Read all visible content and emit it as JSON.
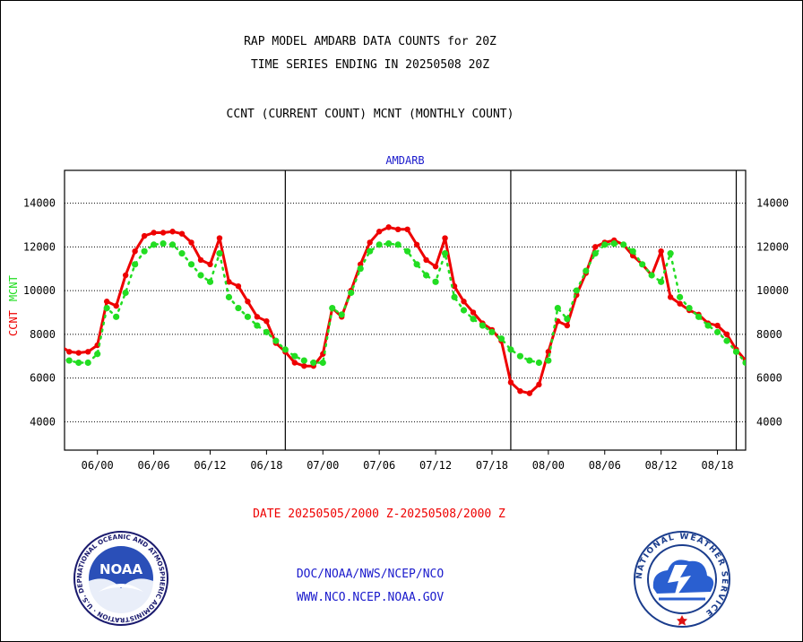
{
  "header": {
    "line1": "RAP MODEL AMDARB DATA COUNTS for 20Z",
    "line2": "TIME SERIES ENDING IN 20250508 20Z",
    "line3": "CCNT (CURRENT COUNT) MCNT (MONTHLY COUNT)"
  },
  "footer": {
    "date_range": "DATE 20250505/2000 Z-20250508/2000 Z",
    "link1": "DOC/NOAA/NWS/NCEP/NCO",
    "link2": "WWW.NCO.NCEP.NOAA.GOV"
  },
  "logos": {
    "noaa_text": "NOAA",
    "noaa_ring": "NATIONAL OCEANIC AND ATMOSPHERIC ADMINISTRATION · U.S. DEPARTMENT OF COMMERCE ·",
    "nws_ring": "NATIONAL WEATHER SERVICE"
  },
  "colors": {
    "ccnt": "#ee0000",
    "mcnt": "#22dd22",
    "link": "#1a1acc",
    "frame": "#000000"
  },
  "chart_data": {
    "type": "line",
    "title": "AMDARB",
    "ylabel_left_1": "CCNT",
    "ylabel_left_2": "MCNT",
    "ylim": [
      2700,
      15500
    ],
    "yticks": [
      4000,
      6000,
      8000,
      10000,
      12000,
      14000
    ],
    "ytick_labels": [
      "4000",
      "6000",
      "8000",
      "10000",
      "12000",
      "14000"
    ],
    "xlim": [
      -3.5,
      69.0
    ],
    "xticks": [
      0,
      6,
      12,
      18,
      24,
      30,
      36,
      42,
      48,
      54,
      60,
      66
    ],
    "xtick_labels": [
      "06/00",
      "06/06",
      "06/12",
      "06/18",
      "07/00",
      "07/06",
      "07/12",
      "07/18",
      "08/00",
      "08/06",
      "08/12",
      "08/18"
    ],
    "day_boundaries_hours": [
      20,
      44,
      68
    ],
    "grid": "horizontal-dotted",
    "x_hours": [
      -4,
      -3,
      -2,
      -1,
      0,
      1,
      2,
      3,
      4,
      5,
      6,
      7,
      8,
      9,
      10,
      11,
      12,
      13,
      14,
      15,
      16,
      17,
      18,
      19,
      20,
      21,
      22,
      23,
      24,
      25,
      26,
      27,
      28,
      29,
      30,
      31,
      32,
      33,
      34,
      35,
      36,
      37,
      38,
      39,
      40,
      41,
      42,
      43,
      44,
      45,
      46,
      47,
      48,
      49,
      50,
      51,
      52,
      53,
      54,
      55,
      56,
      57,
      58,
      59,
      60,
      61,
      62,
      63,
      64,
      65,
      66,
      67,
      68,
      69
    ],
    "series": [
      {
        "name": "CCNT",
        "color": "#ee0000",
        "values": [
          7500,
          7200,
          7150,
          7200,
          7500,
          9500,
          9300,
          10700,
          11800,
          12500,
          12650,
          12650,
          12700,
          12600,
          12200,
          11400,
          11200,
          12400,
          10400,
          10200,
          9500,
          8800,
          8600,
          7600,
          7200,
          6700,
          6550,
          6550,
          7100,
          9200,
          8800,
          10000,
          11200,
          12200,
          12700,
          12900,
          12800,
          12800,
          12100,
          11400,
          11100,
          12400,
          10200,
          9500,
          9000,
          8500,
          8200,
          7700,
          5800,
          5400,
          5300,
          5700,
          7200,
          8600,
          8400,
          9800,
          10800,
          12000,
          12200,
          12300,
          12100,
          11600,
          11200,
          10700,
          11800,
          9700,
          9400,
          9100,
          8900,
          8500,
          8400,
          8000,
          7300,
          6800
        ]
      },
      {
        "name": "MCNT",
        "color": "#22dd22",
        "values": [
          6900,
          6800,
          6700,
          6700,
          7100,
          9200,
          8800,
          9900,
          11200,
          11800,
          12100,
          12150,
          12100,
          11700,
          11200,
          10700,
          10400,
          11700,
          9700,
          9200,
          8800,
          8400,
          8100,
          7700,
          7300,
          7000,
          6800,
          6700,
          6700,
          9200,
          8900,
          9900,
          11000,
          11800,
          12100,
          12150,
          12100,
          11800,
          11200,
          10700,
          10400,
          11700,
          9700,
          9100,
          8700,
          8400,
          8100,
          7800,
          7300,
          7000,
          6800,
          6700,
          6800,
          9200,
          8700,
          10000,
          10900,
          11700,
          12100,
          12150,
          12100,
          11800,
          11200,
          10700,
          10400,
          11700,
          9700,
          9200,
          8800,
          8400,
          8100,
          7700,
          7200,
          6700
        ]
      }
    ]
  }
}
